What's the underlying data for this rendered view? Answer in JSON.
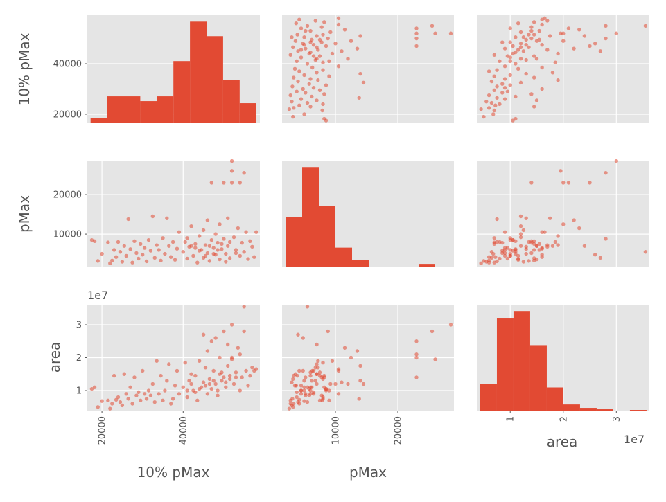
{
  "chart_data": {
    "type": "scatter",
    "title": "",
    "kind": "scatter_matrix",
    "variables": [
      "10% pMax",
      "pMax",
      "area"
    ],
    "offset_text": "1e7",
    "colors": {
      "marker": "#E24A33",
      "panel_bg": "#E5E5E5",
      "grid": "#FFFFFF",
      "text": "#555555"
    },
    "axes": {
      "10% pMax": {
        "xlim": [
          16400,
          58900
        ],
        "ylim": [
          16700,
          59200
        ],
        "ticks": [
          20000,
          40000
        ],
        "tick_labels": [
          "20000",
          "40000"
        ]
      },
      "pMax": {
        "xlim": [
          1444,
          29000
        ],
        "ylim": [
          1600,
          28600
        ],
        "ticks": [
          10000,
          20000
        ],
        "tick_labels": [
          "10000",
          "20000"
        ]
      },
      "area": {
        "xlim": [
          0.37,
          3.61
        ],
        "ylim": [
          0.39,
          3.61
        ],
        "ticks": [
          1,
          2,
          3
        ],
        "tick_labels": [
          "1",
          "2",
          "3"
        ],
        "scale": "1e7"
      }
    },
    "histograms": {
      "10% pMax": {
        "range": [
          17200,
          58000
        ],
        "counts": [
          7,
          38,
          38,
          31,
          38,
          89,
          146,
          125,
          62,
          28
        ]
      },
      "pMax": {
        "range": [
          2000,
          28666
        ],
        "counts": [
          74,
          148,
          90,
          29,
          11,
          0,
          0,
          0,
          5,
          0
        ]
      },
      "area": {
        "range": [
          0.435,
          3.57
        ],
        "counts": [
          39,
          136,
          146,
          96,
          34,
          9,
          4,
          2,
          0,
          1
        ]
      }
    },
    "points": [
      [
        17500,
        8500,
        1.05
      ],
      [
        18200,
        8200,
        1.1
      ],
      [
        19000,
        3200,
        0.5
      ],
      [
        20000,
        5000,
        0.68
      ],
      [
        21500,
        7900,
        0.7
      ],
      [
        22000,
        2600,
        0.45
      ],
      [
        22500,
        3300,
        0.6
      ],
      [
        23000,
        6000,
        1.45
      ],
      [
        23500,
        4200,
        0.72
      ],
      [
        24000,
        8000,
        0.8
      ],
      [
        24500,
        5500,
        0.65
      ],
      [
        25000,
        3000,
        0.55
      ],
      [
        25500,
        7000,
        1.5
      ],
      [
        26000,
        4500,
        0.9
      ],
      [
        26500,
        13800,
        0.75
      ],
      [
        27000,
        6200,
        1.1
      ],
      [
        27500,
        2800,
        0.6
      ],
      [
        28000,
        8200,
        1.4
      ],
      [
        28500,
        5200,
        0.85
      ],
      [
        29000,
        3800,
        0.95
      ],
      [
        29500,
        7500,
        0.7
      ],
      [
        30000,
        4800,
        1.6
      ],
      [
        30500,
        6500,
        0.9
      ],
      [
        31000,
        3100,
        0.75
      ],
      [
        31500,
        8500,
        1.0
      ],
      [
        32000,
        5800,
        0.85
      ],
      [
        32500,
        14500,
        1.2
      ],
      [
        33000,
        4000,
        0.65
      ],
      [
        33500,
        7200,
        1.9
      ],
      [
        34000,
        6000,
        0.9
      ],
      [
        34500,
        3300,
        1.45
      ],
      [
        35000,
        9000,
        0.7
      ],
      [
        35500,
        5000,
        1.0
      ],
      [
        36000,
        14000,
        1.3
      ],
      [
        36500,
        7000,
        1.8
      ],
      [
        37000,
        4200,
        0.6
      ],
      [
        37500,
        8000,
        0.75
      ],
      [
        38000,
        3500,
        1.15
      ],
      [
        38500,
        6300,
        1.6
      ],
      [
        39000,
        10500,
        0.9
      ],
      [
        40000,
        5500,
        1.1
      ],
      [
        40500,
        8000,
        1.85
      ],
      [
        41000,
        3800,
        0.8
      ],
      [
        41500,
        6800,
        1.3
      ],
      [
        42000,
        12000,
        1.2
      ],
      [
        42500,
        4500,
        1.0
      ],
      [
        43000,
        7500,
        1.45
      ],
      [
        43500,
        2800,
        0.7
      ],
      [
        44000,
        9500,
        1.9
      ],
      [
        44500,
        6000,
        1.1
      ],
      [
        45000,
        4000,
        2.7
      ],
      [
        45000,
        11000,
        1.25
      ],
      [
        45500,
        7200,
        1.7
      ],
      [
        46000,
        5200,
        0.9
      ],
      [
        46000,
        13500,
        2.2
      ],
      [
        46500,
        3200,
        1.35
      ],
      [
        47000,
        8500,
        1.05
      ],
      [
        47000,
        23000,
        2.5
      ],
      [
        47500,
        6500,
        1.6
      ],
      [
        48000,
        4800,
        2.6
      ],
      [
        48000,
        10000,
        1.2
      ],
      [
        48500,
        7800,
        0.85
      ],
      [
        49000,
        3600,
        1.5
      ],
      [
        49000,
        12500,
        2.0
      ],
      [
        49500,
        6200,
        1.3
      ],
      [
        50000,
        8800,
        2.8
      ],
      [
        50000,
        23000,
        1.4
      ],
      [
        50500,
        5000,
        1.1
      ],
      [
        51000,
        14000,
        1.75
      ],
      [
        51000,
        7000,
        2.4
      ],
      [
        51500,
        3900,
        1.45
      ],
      [
        52000,
        23000,
        2.0
      ],
      [
        52000,
        28500,
        3.0
      ],
      [
        52000,
        26000,
        1.95
      ],
      [
        52500,
        9200,
        1.2
      ],
      [
        53000,
        6000,
        1.55
      ],
      [
        53500,
        11500,
        2.3
      ],
      [
        54000,
        4500,
        1.0
      ],
      [
        54000,
        23000,
        2.1
      ],
      [
        54500,
        7800,
        1.4
      ],
      [
        55000,
        5500,
        3.55
      ],
      [
        55000,
        25500,
        2.8
      ],
      [
        55500,
        10500,
        1.6
      ],
      [
        56000,
        3700,
        1.15
      ],
      [
        56500,
        8200,
        1.45
      ],
      [
        57000,
        6800,
        1.7
      ],
      [
        57500,
        4200,
        1.6
      ],
      [
        58000,
        10500,
        1.65
      ],
      [
        44000,
        5800,
        1.05
      ],
      [
        43000,
        6500,
        0.95
      ],
      [
        46500,
        7000,
        1.2
      ],
      [
        47500,
        5000,
        1.3
      ],
      [
        48500,
        6000,
        1.0
      ],
      [
        49500,
        7500,
        1.55
      ],
      [
        45500,
        4500,
        1.15
      ],
      [
        50500,
        3000,
        1.25
      ],
      [
        51500,
        8000,
        1.35
      ],
      [
        42000,
        7000,
        1.5
      ],
      [
        53000,
        5200,
        1.4
      ],
      [
        41000,
        9000,
        1.0
      ]
    ]
  }
}
